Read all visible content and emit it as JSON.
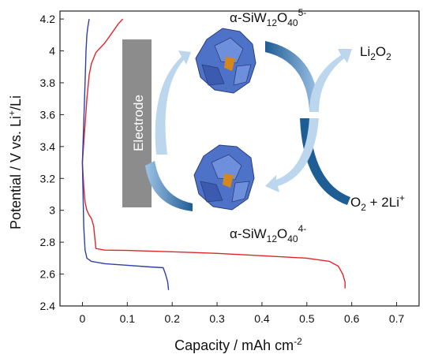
{
  "chart_data": {
    "type": "line",
    "xlabel": "Capacity / mAh cm",
    "xlabel_sup": "-2",
    "ylabel": "Potential / V vs. Li",
    "ylabel_sup": "+",
    "ylabel_tail": "/Li",
    "xlim": [
      -0.05,
      0.75
    ],
    "ylim": [
      2.4,
      4.25
    ],
    "x_ticks": [
      0,
      0.1,
      0.2,
      0.3,
      0.4,
      0.5,
      0.6,
      0.7
    ],
    "x_tick_labels": [
      "0",
      "0.1",
      "0.2",
      "0.3",
      "0.4",
      "0.5",
      "0.6",
      "0.7"
    ],
    "y_ticks": [
      2.4,
      2.6,
      2.8,
      3.0,
      3.2,
      3.4,
      3.6,
      3.8,
      4.0,
      4.2
    ],
    "y_tick_labels": [
      "2.4",
      "2.6",
      "2.8",
      "3",
      "3.2",
      "3.4",
      "3.6",
      "3.8",
      "4",
      "4.2"
    ],
    "grid": false,
    "series": [
      {
        "color": "#e0262a",
        "x": [
          0.0,
          0.003,
          0.006,
          0.01,
          0.015,
          0.02,
          0.025,
          0.03,
          0.05,
          0.1,
          0.2,
          0.3,
          0.4,
          0.5,
          0.55,
          0.57,
          0.58,
          0.585,
          0.585
        ],
        "y": [
          3.3,
          3.15,
          3.05,
          3.0,
          2.97,
          2.95,
          2.9,
          2.76,
          2.75,
          2.748,
          2.74,
          2.73,
          2.715,
          2.7,
          2.68,
          2.65,
          2.6,
          2.55,
          2.51
        ]
      },
      {
        "color": "#e0262a",
        "x": [
          0.0,
          0.01,
          0.015,
          0.02,
          0.03,
          0.05,
          0.07,
          0.08,
          0.09
        ],
        "y": [
          3.3,
          3.7,
          3.85,
          3.92,
          3.99,
          4.05,
          4.13,
          4.17,
          4.2
        ]
      },
      {
        "color": "#2e3fa8",
        "x": [
          0.0,
          0.003,
          0.006,
          0.01,
          0.02,
          0.05,
          0.1,
          0.15,
          0.18,
          0.185,
          0.19,
          0.192
        ],
        "y": [
          3.3,
          2.9,
          2.75,
          2.7,
          2.68,
          2.665,
          2.655,
          2.645,
          2.64,
          2.6,
          2.55,
          2.5
        ]
      },
      {
        "color": "#2e3fa8",
        "x": [
          0.0,
          0.003,
          0.006,
          0.008,
          0.01,
          0.012,
          0.015
        ],
        "y": [
          3.3,
          3.55,
          3.8,
          4.0,
          4.1,
          4.15,
          4.2
        ]
      }
    ],
    "annotations": {
      "electrode": "Electrode",
      "top_molecule": {
        "base": "α-SiW",
        "sub1": "12",
        "mid": "O",
        "sub2": "40",
        "sup": "5-"
      },
      "bottom_molecule": {
        "base": "α-SiW",
        "sub1": "12",
        "mid": "O",
        "sub2": "40",
        "sup": "4-"
      },
      "li2o2": {
        "a": "Li",
        "sub": "2",
        "b": "O",
        "sub2": "2"
      },
      "o2": {
        "a": "O",
        "sub": "2",
        "b": " + 2Li",
        "sup": "+"
      }
    }
  },
  "colors": {
    "discharge": "#e0262a",
    "charge": "#2e3fa8",
    "electrode_block": "#8c8c8c",
    "arrow_dark": "#1f5d95",
    "arrow_light": "#bcd6ee",
    "cluster": "#4f72c9",
    "cluster_core": "#d4861f"
  }
}
